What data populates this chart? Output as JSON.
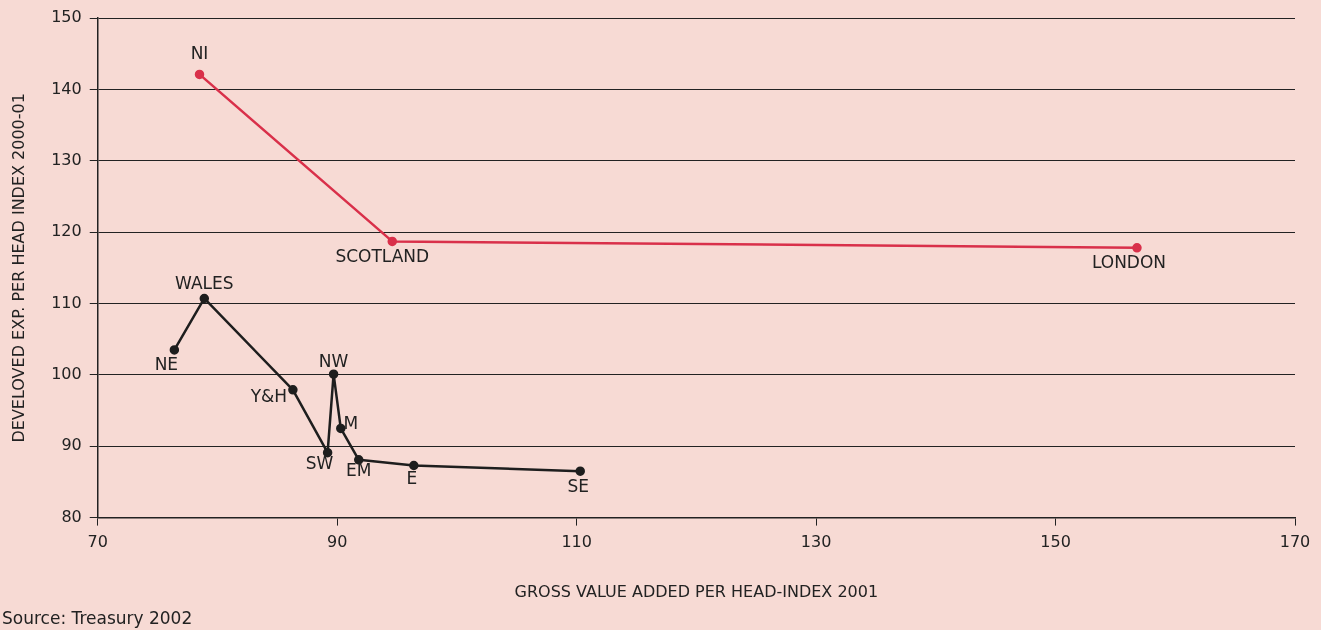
{
  "chart_data": {
    "type": "line",
    "xlabel": "GROSS VALUE ADDED PER HEAD-INDEX 2001",
    "ylabel": "DEVELOVED EXP. PER HEAD INDEX 2000-01",
    "series": [
      {
        "color": "#d9304a",
        "x": [
          78.5,
          94.6,
          156.8
        ],
        "values": [
          142.1,
          118.7,
          117.8
        ]
      },
      {
        "color": "#1e1e1e",
        "x": [
          76.4,
          78.9,
          86.3,
          89.2,
          89.7,
          90.3,
          91.8,
          96.4,
          110.3
        ],
        "values": [
          103.5,
          110.7,
          97.9,
          89.1,
          100.1,
          92.5,
          88.1,
          87.3,
          86.5
        ]
      }
    ],
    "xlim": [
      70,
      170
    ],
    "xticks": [
      70,
      90,
      110,
      130,
      150,
      170
    ],
    "ylim": [
      80,
      150
    ],
    "yticks": [
      80,
      90,
      100,
      110,
      120,
      130,
      140,
      150
    ],
    "grid": "y",
    "legend": false,
    "marker": "circle",
    "line_style": "solid",
    "annotations": [
      {
        "text": "NI",
        "x": 78.5,
        "y": 142.1
      },
      {
        "text": "SCOTLAND",
        "x": 94.6,
        "y": 118.7
      },
      {
        "text": "LONDON",
        "x": 156.8,
        "y": 117.8
      },
      {
        "text": "NE",
        "x": 76.4,
        "y": 103.5
      },
      {
        "text": "WALES",
        "x": 78.9,
        "y": 110.7
      },
      {
        "text": "Y&H",
        "x": 86.3,
        "y": 97.9
      },
      {
        "text": "SW",
        "x": 89.2,
        "y": 89.1
      },
      {
        "text": "NW",
        "x": 89.7,
        "y": 100.1
      },
      {
        "text": "M",
        "x": 90.3,
        "y": 92.5
      },
      {
        "text": "EM",
        "x": 91.8,
        "y": 88.1
      },
      {
        "text": "E",
        "x": 96.4,
        "y": 87.3
      },
      {
        "text": "SE",
        "x": 110.3,
        "y": 86.5
      },
      "Source: Treasury 2002"
    ]
  }
}
